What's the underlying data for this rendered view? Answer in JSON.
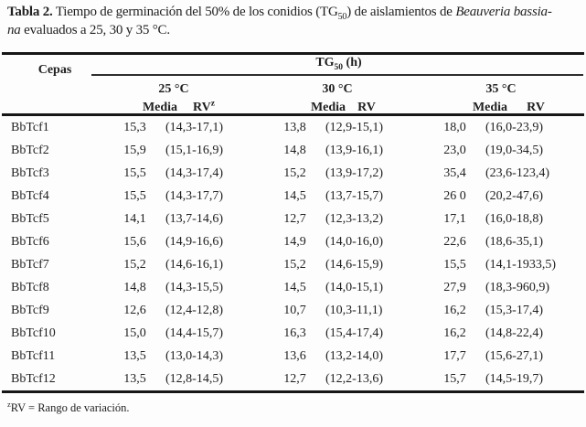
{
  "caption": {
    "label": "Tabla 2.",
    "part1": " Tiempo de germinación del 50% de los conidios (TG",
    "sub": "50",
    "part2": ") de aislamientos de ",
    "italic": "Beauveria bassia-",
    "italic2": "na",
    "part3": " evaluados a 25, 30 y 35 °C."
  },
  "header": {
    "cepas": "Cepas",
    "tg_label": "TG",
    "tg_sub": "50",
    "tg_unit": " (h)",
    "temp_25": "25 °C",
    "temp_30": "30 °C",
    "temp_35": "35 °C",
    "media": "Media",
    "rv": "RV",
    "rv_sup": "z"
  },
  "rows": [
    {
      "cepa": "BbTcf1",
      "m25": "15,3",
      "rv25": "(14,3-17,1)",
      "m30": "13,8",
      "rv30": "(12,9-15,1)",
      "m35": "18,0",
      "rv35": "(16,0-23,9)"
    },
    {
      "cepa": "BbTcf2",
      "m25": "15,9",
      "rv25": "(15,1-16,9)",
      "m30": "14,8",
      "rv30": "(13,9-16,1)",
      "m35": "23,0",
      "rv35": "(19,0-34,5)"
    },
    {
      "cepa": "BbTcf3",
      "m25": "15,5",
      "rv25": "(14,3-17,4)",
      "m30": "15,2",
      "rv30": "(13,9-17,2)",
      "m35": "35,4",
      "rv35": "(23,6-123,4)"
    },
    {
      "cepa": "BbTcf4",
      "m25": "15,5",
      "rv25": "(14,3-17,7)",
      "m30": "14,5",
      "rv30": "(13,7-15,7)",
      "m35": "26 0",
      "rv35": "(20,2-47,6)"
    },
    {
      "cepa": "BbTcf5",
      "m25": "14,1",
      "rv25": "(13,7-14,6)",
      "m30": "12,7",
      "rv30": "(12,3-13,2)",
      "m35": "17,1",
      "rv35": "(16,0-18,8)"
    },
    {
      "cepa": "BbTcf6",
      "m25": "15,6",
      "rv25": "(14,9-16,6)",
      "m30": "14,9",
      "rv30": "(14,0-16,0)",
      "m35": "22,6",
      "rv35": "(18,6-35,1)"
    },
    {
      "cepa": "BbTcf7",
      "m25": "15,2",
      "rv25": "(14,6-16,1)",
      "m30": "15,2",
      "rv30": "(14,6-15,9)",
      "m35": "15,5",
      "rv35": "(14,1-1933,5)"
    },
    {
      "cepa": "BbTcf8",
      "m25": "14,8",
      "rv25": "(14,3-15,5)",
      "m30": "14,5",
      "rv30": "(14,0-15,1)",
      "m35": "27,9",
      "rv35": "(18,3-960,9)"
    },
    {
      "cepa": "BbTcf9",
      "m25": "12,6",
      "rv25": "(12,4-12,8)",
      "m30": "10,7",
      "rv30": "(10,3-11,1)",
      "m35": "16,2",
      "rv35": "(15,3-17,4)"
    },
    {
      "cepa": "BbTcf10",
      "m25": "15,0",
      "rv25": "(14,4-15,7)",
      "m30": "16,3",
      "rv30": "(15,4-17,4)",
      "m35": "16,2",
      "rv35": "(14,8-22,4)"
    },
    {
      "cepa": "BbTcf11",
      "m25": "13,5",
      "rv25": "(13,0-14,3)",
      "m30": "13,6",
      "rv30": "(13,2-14,0)",
      "m35": "17,7",
      "rv35": "(15,6-27,1)"
    },
    {
      "cepa": "BbTcf12",
      "m25": "13,5",
      "rv25": "(12,8-14,5)",
      "m30": "12,7",
      "rv30": "(12,2-13,6)",
      "m35": "15,7",
      "rv35": "(14,5-19,7)"
    }
  ],
  "footnote": {
    "sup": "z",
    "text": "RV = Rango de variación."
  },
  "colors": {
    "text": "#1f1f1f",
    "rule": "#161616",
    "background": "#fdfdfd"
  }
}
